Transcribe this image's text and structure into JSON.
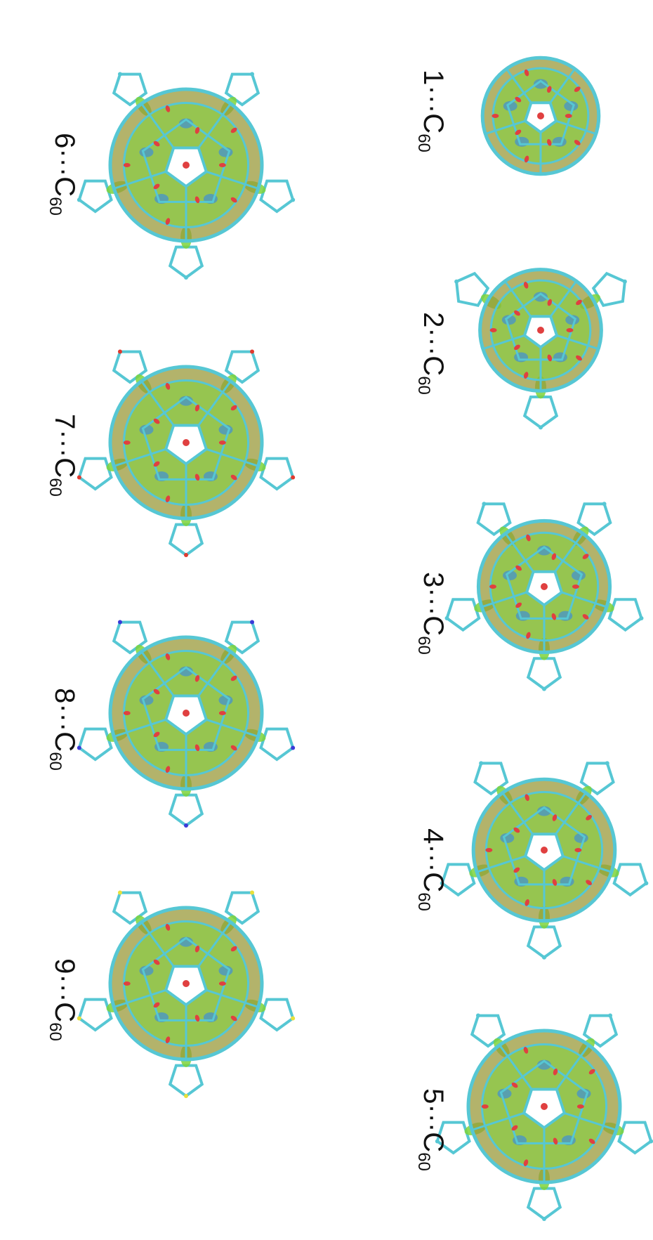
{
  "figure": {
    "panels": [
      {
        "id": "1",
        "label": "1···C",
        "subscript": "60",
        "accent": "#56c7d4"
      },
      {
        "id": "2",
        "label": "2···C",
        "subscript": "60",
        "accent": "#56c7d4"
      },
      {
        "id": "3",
        "label": "3···C",
        "subscript": "60",
        "accent": "#56c7d4"
      },
      {
        "id": "4",
        "label": "4···C",
        "subscript": "60",
        "accent": "#56c7d4"
      },
      {
        "id": "5",
        "label": "5···C",
        "subscript": "60",
        "accent": "#56c7d4"
      },
      {
        "id": "6",
        "label": "6···C",
        "subscript": "60",
        "accent": "#56c7d4"
      },
      {
        "id": "7",
        "label": "7···C",
        "subscript": "60",
        "accent": "#e03a2f"
      },
      {
        "id": "8",
        "label": "8···C",
        "subscript": "60",
        "accent": "#3a3ad8"
      },
      {
        "id": "9",
        "label": "9···C",
        "subscript": "60",
        "accent": "#e8e03a"
      }
    ],
    "colors": {
      "bond": "#56c7d4",
      "surface_green": "#7ed43a",
      "surface_olive": "#9a9a3a",
      "surface_blue": "#3f8fd6",
      "critical_red": "#e04040",
      "hydrogen": "#e8e8e8"
    }
  }
}
